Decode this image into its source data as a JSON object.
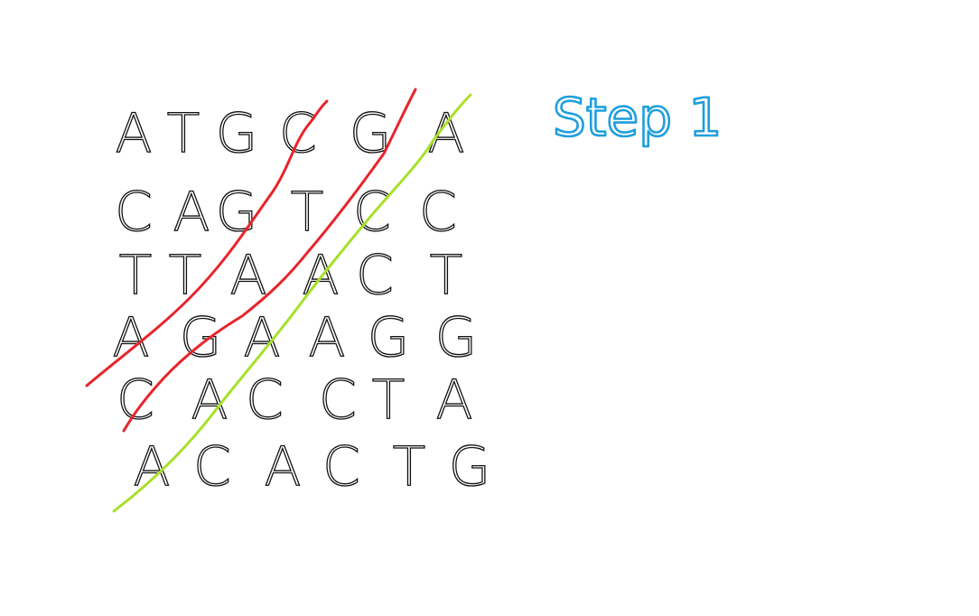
{
  "step_label": "Step 1",
  "grid": {
    "rows": [
      [
        "A",
        "T",
        "G",
        "C",
        "G",
        "A"
      ],
      [
        "C",
        "A",
        "G",
        "T",
        "C",
        "C"
      ],
      [
        "T",
        "T",
        "A",
        "A",
        "C",
        "T"
      ],
      [
        "A",
        "G",
        "A",
        "A",
        "G",
        "G"
      ],
      [
        "C",
        "A",
        "C",
        "C",
        "T",
        "A"
      ],
      [
        "A",
        "C",
        "A",
        "C",
        "T",
        "G"
      ]
    ]
  },
  "diagonals": [
    {
      "color": "#e8242b"
    },
    {
      "color": "#e8242b"
    },
    {
      "color": "#a8e02a"
    }
  ],
  "colors": {
    "letters": "#111111",
    "step_label": "#1e9fdc",
    "red_line": "#e8242b",
    "green_line": "#a8e02a"
  }
}
